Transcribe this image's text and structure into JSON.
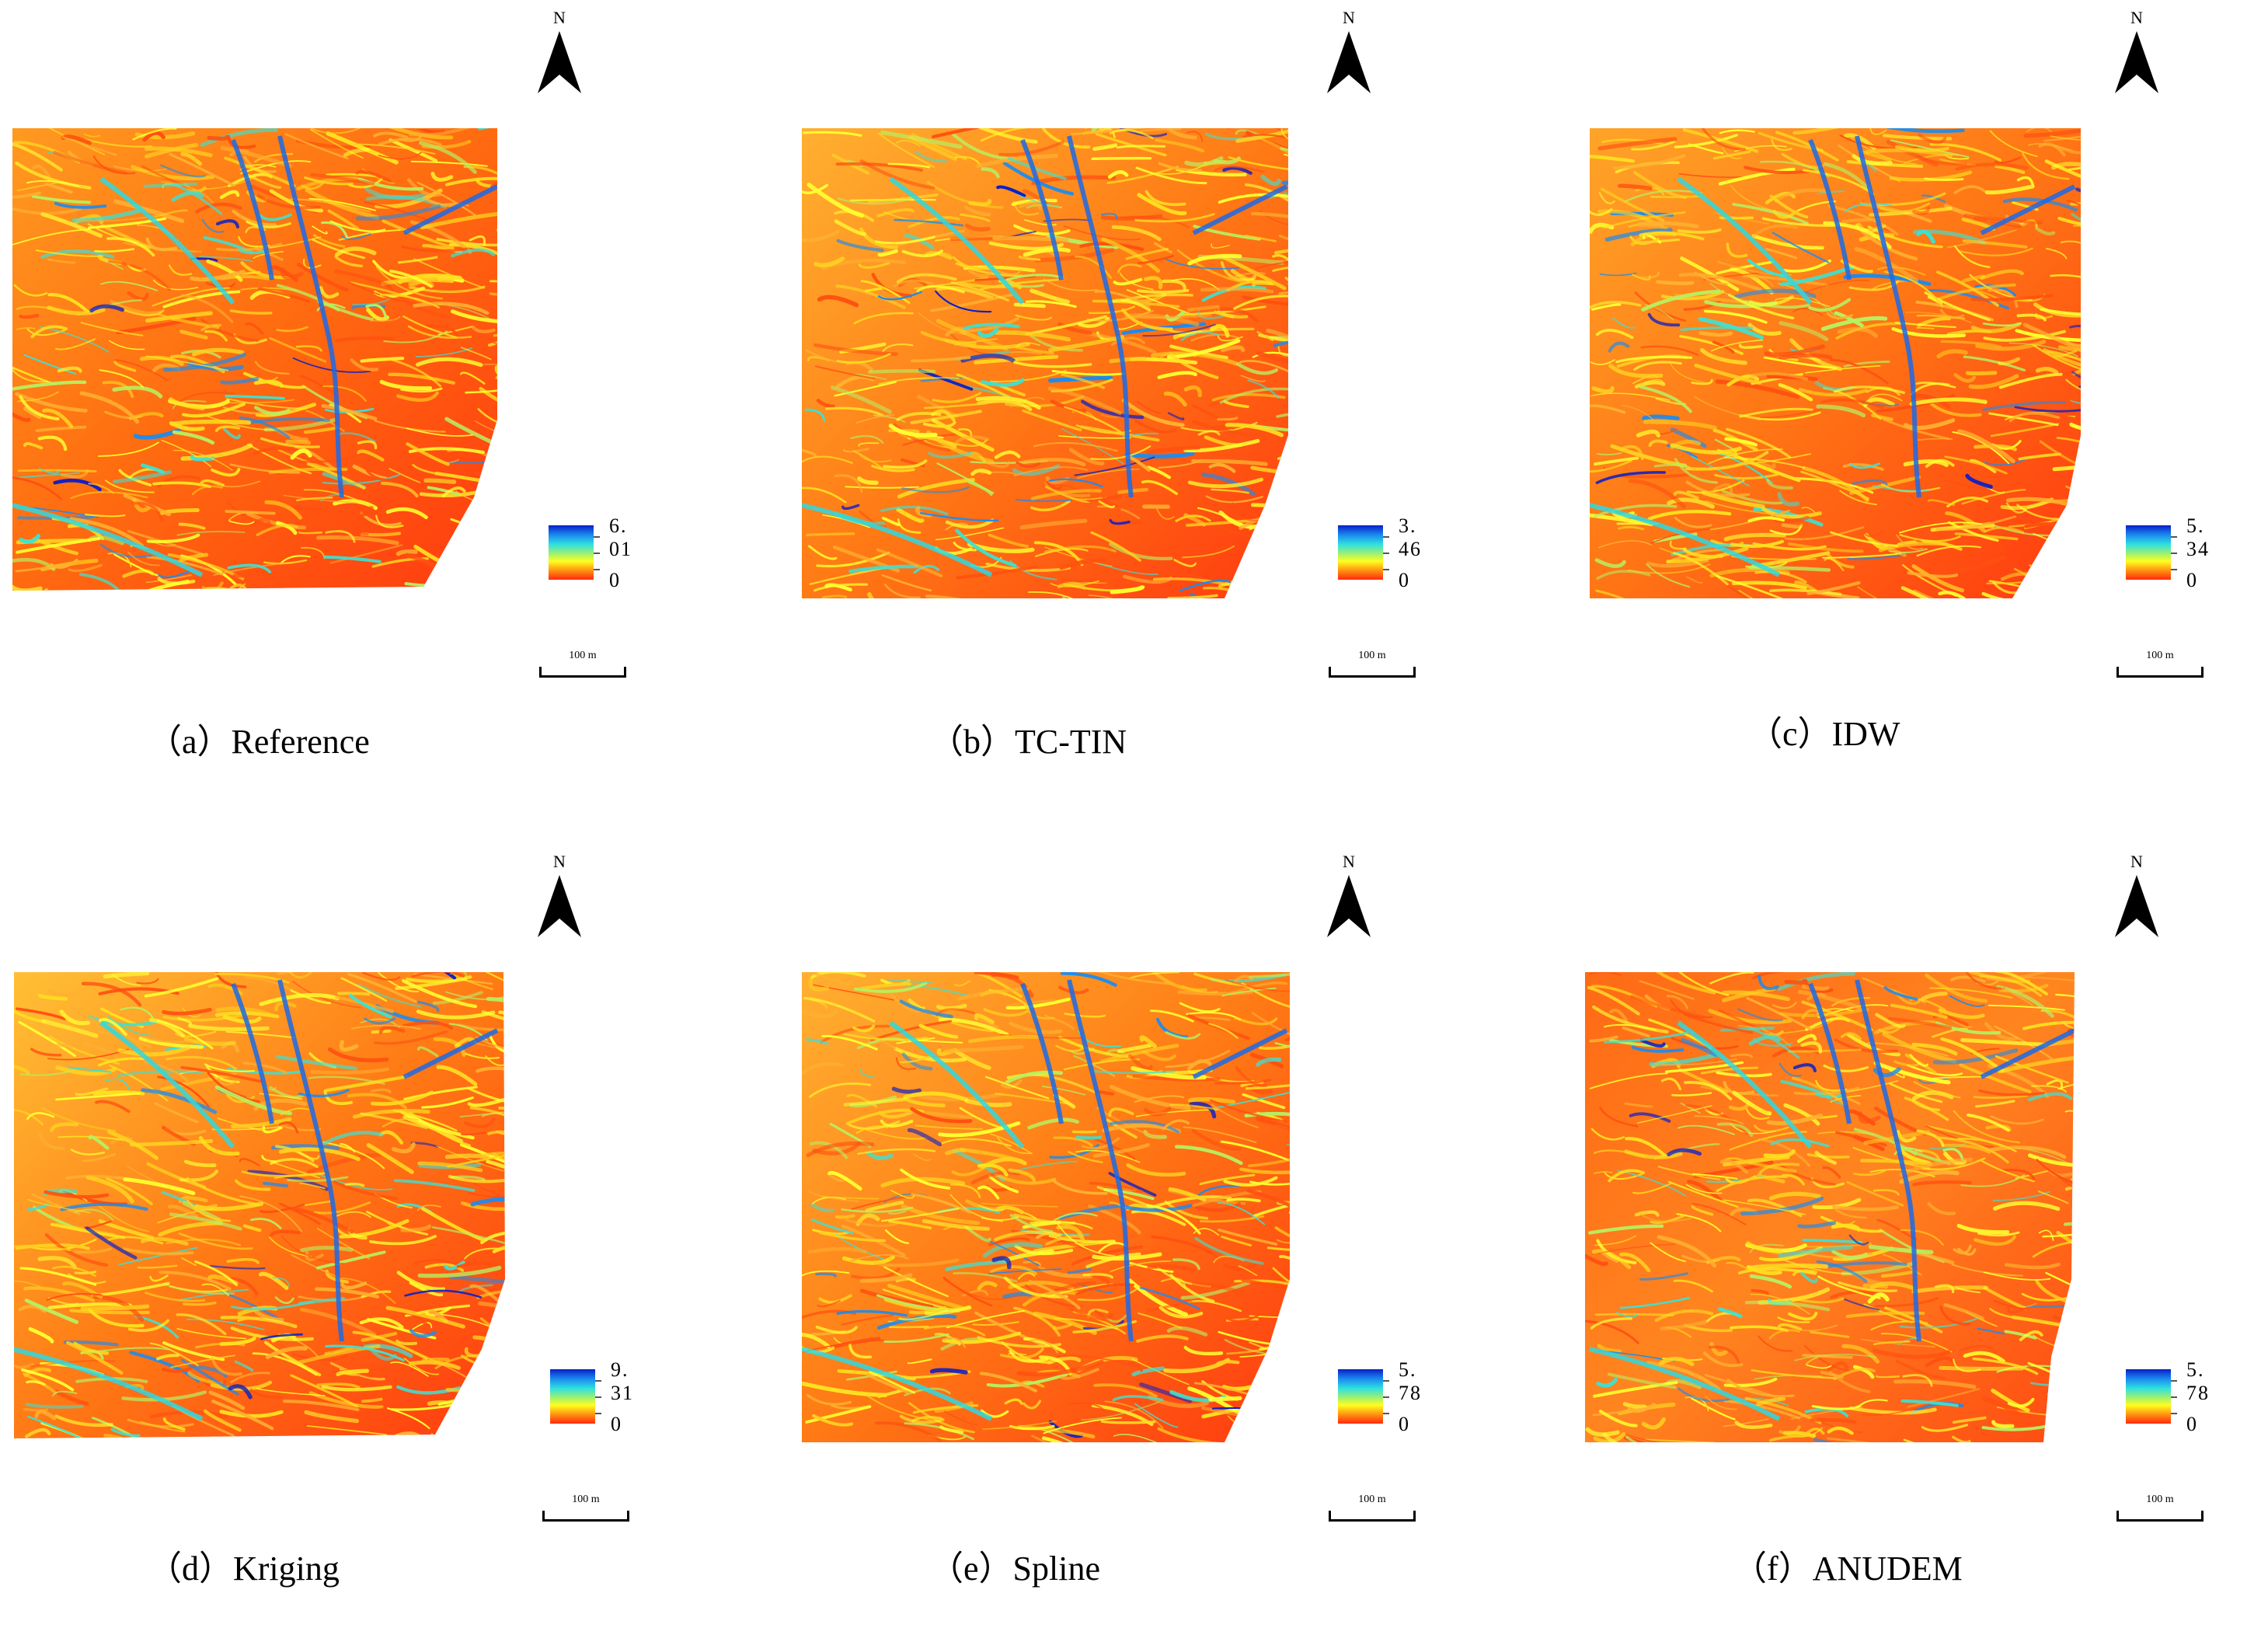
{
  "north_label": "N",
  "scale_label": "100 m",
  "colors": {
    "ramp_high": "#0a1ec8",
    "ramp_mid_cyan": "#2fe0e0",
    "ramp_mid_yellow": "#ffff20",
    "ramp_low": "#ff2a10"
  },
  "panels": [
    {
      "caption": "（a）Reference",
      "legend_max": "6. 01",
      "legend_min": "0"
    },
    {
      "caption": "（b）TC-TIN",
      "legend_max": "3. 46",
      "legend_min": "0"
    },
    {
      "caption": "（c）IDW",
      "legend_max": "5. 34",
      "legend_min": "0"
    },
    {
      "caption": "（d）Kriging",
      "legend_max": "9. 31",
      "legend_min": "0"
    },
    {
      "caption": "（e）Spline",
      "legend_max": "5. 78",
      "legend_min": "0"
    },
    {
      "caption": "（f）ANUDEM",
      "legend_max": "5. 78",
      "legend_min": "0"
    }
  ]
}
